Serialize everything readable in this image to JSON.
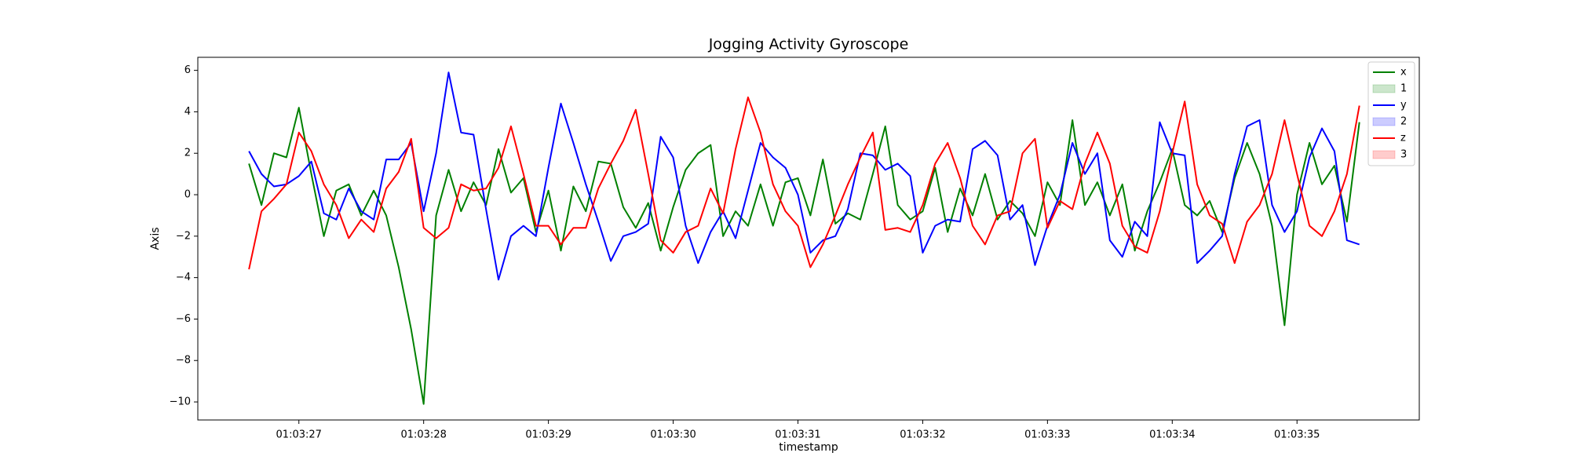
{
  "chart_data": {
    "type": "line",
    "title": "Jogging Activity Gyroscope",
    "xlabel": "timestamp",
    "ylabel": "Axis",
    "x": [
      26.6,
      26.7,
      26.8,
      26.9,
      27.0,
      27.1,
      27.2,
      27.3,
      27.4,
      27.5,
      27.6,
      27.7,
      27.8,
      27.9,
      28.0,
      28.1,
      28.2,
      28.3,
      28.4,
      28.5,
      28.6,
      28.7,
      28.8,
      28.9,
      29.0,
      29.1,
      29.2,
      29.3,
      29.4,
      29.5,
      29.6,
      29.7,
      29.8,
      29.9,
      30.0,
      30.1,
      30.2,
      30.3,
      30.4,
      30.5,
      30.6,
      30.7,
      30.8,
      30.9,
      31.0,
      31.1,
      31.2,
      31.3,
      31.4,
      31.5,
      31.6,
      31.7,
      31.8,
      31.9,
      32.0,
      32.1,
      32.2,
      32.3,
      32.4,
      32.5,
      32.6,
      32.7,
      32.8,
      32.9,
      33.0,
      33.1,
      33.2,
      33.3,
      33.4,
      33.5,
      33.6,
      33.7,
      33.8,
      33.9,
      34.0,
      34.1,
      34.2,
      34.3,
      34.4,
      34.5,
      34.6,
      34.7,
      34.8,
      34.9,
      35.0,
      35.1,
      35.2,
      35.3,
      35.4,
      35.5
    ],
    "series": [
      {
        "name": "x",
        "color": "#008000",
        "values": [
          1.5,
          -0.5,
          2.0,
          1.8,
          4.2,
          1.0,
          -2.0,
          0.2,
          0.5,
          -1.0,
          0.2,
          -1.0,
          -3.5,
          -6.5,
          -10.1,
          -1.0,
          1.2,
          -0.8,
          0.6,
          -0.5,
          2.2,
          0.1,
          0.8,
          -1.8,
          0.2,
          -2.7,
          0.4,
          -0.8,
          1.6,
          1.5,
          -0.6,
          -1.6,
          -0.4,
          -2.7,
          -0.6,
          1.2,
          2.0,
          2.4,
          -2.0,
          -0.8,
          -1.5,
          0.5,
          -1.5,
          0.6,
          0.8,
          -1.0,
          1.7,
          -1.4,
          -0.9,
          -1.2,
          1.0,
          3.3,
          -0.5,
          -1.2,
          -0.8,
          1.3,
          -1.8,
          0.3,
          -1.0,
          1.0,
          -1.2,
          -0.3,
          -0.9,
          -2.0,
          0.6,
          -0.5,
          3.6,
          -0.5,
          0.6,
          -1.0,
          0.5,
          -2.7,
          -0.8,
          0.6,
          2.2,
          -0.5,
          -1.0,
          -0.3,
          -1.8,
          0.8,
          2.5,
          1.0,
          -1.5,
          -6.3,
          0.0,
          2.5,
          0.5,
          1.4,
          -1.3,
          3.5
        ]
      },
      {
        "name": "y",
        "color": "#0000ff",
        "values": [
          2.1,
          1.0,
          0.4,
          0.5,
          0.9,
          1.6,
          -0.9,
          -1.2,
          0.3,
          -0.8,
          -1.2,
          1.7,
          1.7,
          2.5,
          -0.8,
          2.0,
          5.9,
          3.0,
          2.9,
          -0.7,
          -4.1,
          -2.0,
          -1.5,
          -2.0,
          1.3,
          4.4,
          2.5,
          0.5,
          -1.3,
          -3.2,
          -2.0,
          -1.8,
          -1.4,
          2.8,
          1.8,
          -1.5,
          -3.3,
          -1.8,
          -0.8,
          -2.1,
          0.2,
          2.5,
          1.8,
          1.3,
          0.0,
          -2.8,
          -2.2,
          -2.0,
          -0.7,
          2.0,
          1.9,
          1.2,
          1.5,
          0.9,
          -2.8,
          -1.5,
          -1.2,
          -1.3,
          2.2,
          2.6,
          1.9,
          -1.2,
          -0.5,
          -3.4,
          -1.5,
          0.0,
          2.5,
          1.0,
          2.0,
          -2.2,
          -3.0,
          -1.3,
          -2.0,
          3.5,
          2.0,
          1.9,
          -3.3,
          -2.7,
          -2.0,
          1.0,
          3.3,
          3.6,
          -0.5,
          -1.8,
          -0.8,
          1.8,
          3.2,
          2.1,
          -2.2,
          -2.4
        ]
      },
      {
        "name": "z",
        "color": "#ff0000",
        "values": [
          -3.6,
          -0.8,
          -0.2,
          0.5,
          3.0,
          2.1,
          0.5,
          -0.5,
          -2.1,
          -1.2,
          -1.8,
          0.3,
          1.1,
          2.7,
          -1.6,
          -2.1,
          -1.6,
          0.5,
          0.2,
          0.3,
          1.3,
          3.3,
          1.0,
          -1.5,
          -1.5,
          -2.4,
          -1.6,
          -1.6,
          0.3,
          1.5,
          2.6,
          4.1,
          1.0,
          -2.2,
          -2.8,
          -1.8,
          -1.5,
          0.3,
          -0.9,
          2.2,
          4.7,
          3.0,
          0.5,
          -0.8,
          -1.5,
          -3.5,
          -2.4,
          -1.0,
          0.5,
          1.8,
          3.0,
          -1.7,
          -1.6,
          -1.8,
          -0.5,
          1.5,
          2.5,
          0.8,
          -1.5,
          -2.4,
          -1.0,
          -0.8,
          2.0,
          2.7,
          -1.6,
          -0.3,
          -0.7,
          1.5,
          3.0,
          1.5,
          -1.5,
          -2.5,
          -2.8,
          -0.8,
          2.0,
          4.5,
          0.5,
          -1.0,
          -1.4,
          -3.3,
          -1.3,
          -0.5,
          1.0,
          3.6,
          1.0,
          -1.5,
          -2.0,
          -0.8,
          1.0,
          4.3
        ]
      }
    ],
    "patches": [
      {
        "name": "1",
        "color": "#008000"
      },
      {
        "name": "2",
        "color": "#0000ff"
      },
      {
        "name": "3",
        "color": "#ff0000"
      }
    ],
    "xlim": [
      26.19,
      35.98
    ],
    "ylim": [
      -10.87,
      6.63
    ],
    "xticks": [
      {
        "value": 27,
        "label": "01:03:27"
      },
      {
        "value": 28,
        "label": "01:03:28"
      },
      {
        "value": 29,
        "label": "01:03:29"
      },
      {
        "value": 30,
        "label": "01:03:30"
      },
      {
        "value": 31,
        "label": "01:03:31"
      },
      {
        "value": 32,
        "label": "01:03:32"
      },
      {
        "value": 33,
        "label": "01:03:33"
      },
      {
        "value": 34,
        "label": "01:03:34"
      },
      {
        "value": 35,
        "label": "01:03:35"
      }
    ],
    "yticks": [
      {
        "value": -10,
        "label": "−10"
      },
      {
        "value": -8,
        "label": "−8"
      },
      {
        "value": -6,
        "label": "−6"
      },
      {
        "value": -4,
        "label": "−4"
      },
      {
        "value": -2,
        "label": "−2"
      },
      0,
      2,
      4,
      6
    ],
    "grid": false,
    "legend": "upper right"
  }
}
